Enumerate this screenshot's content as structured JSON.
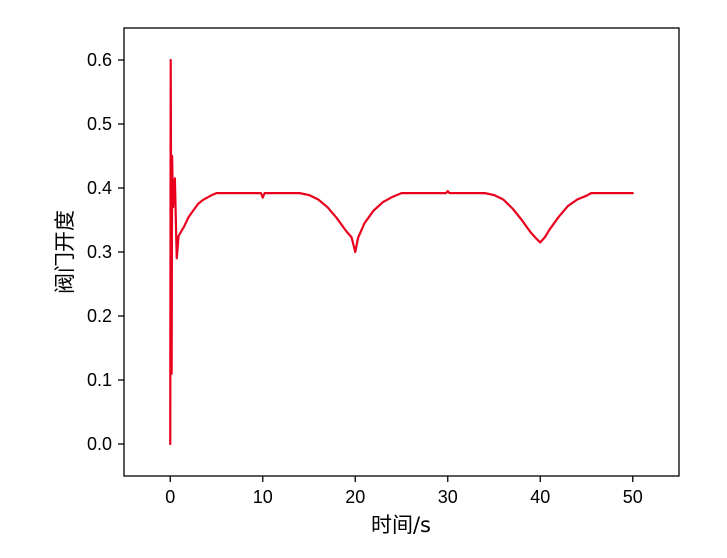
{
  "chart_data": {
    "type": "line",
    "xlabel": "时间/s",
    "ylabel": "阀门开度",
    "xlim": [
      -5,
      55
    ],
    "ylim": [
      -0.05,
      0.65
    ],
    "x_ticks": [
      0,
      10,
      20,
      30,
      40,
      50
    ],
    "y_ticks": [
      0.0,
      0.1,
      0.2,
      0.3,
      0.4,
      0.5,
      0.6
    ],
    "x_tick_labels": [
      "0",
      "10",
      "20",
      "30",
      "40",
      "50"
    ],
    "y_tick_labels": [
      "0.0",
      "0.1",
      "0.2",
      "0.3",
      "0.4",
      "0.5",
      "0.6"
    ],
    "grid": false,
    "legend": "none",
    "series": [
      {
        "color": "#e8001c",
        "points": [
          [
            0.0,
            0.0
          ],
          [
            0.05,
            0.6
          ],
          [
            0.1,
            0.35
          ],
          [
            0.15,
            0.11
          ],
          [
            0.2,
            0.45
          ],
          [
            0.3,
            0.37
          ],
          [
            0.5,
            0.415
          ],
          [
            0.7,
            0.29
          ],
          [
            0.9,
            0.325
          ],
          [
            1.5,
            0.34
          ],
          [
            2.0,
            0.355
          ],
          [
            2.5,
            0.365
          ],
          [
            3.0,
            0.375
          ],
          [
            3.5,
            0.381
          ],
          [
            4.0,
            0.385
          ],
          [
            4.5,
            0.389
          ],
          [
            5.0,
            0.392
          ],
          [
            9.8,
            0.392
          ],
          [
            10.0,
            0.385
          ],
          [
            10.2,
            0.392
          ],
          [
            14.0,
            0.392
          ],
          [
            15.0,
            0.389
          ],
          [
            16.0,
            0.382
          ],
          [
            17.0,
            0.37
          ],
          [
            18.0,
            0.353
          ],
          [
            19.0,
            0.333
          ],
          [
            19.6,
            0.323
          ],
          [
            20.0,
            0.3
          ],
          [
            20.3,
            0.322
          ],
          [
            21.0,
            0.345
          ],
          [
            22.0,
            0.365
          ],
          [
            23.0,
            0.378
          ],
          [
            24.0,
            0.386
          ],
          [
            25.0,
            0.392
          ],
          [
            29.8,
            0.392
          ],
          [
            30.0,
            0.395
          ],
          [
            30.2,
            0.392
          ],
          [
            34.0,
            0.392
          ],
          [
            35.0,
            0.389
          ],
          [
            36.0,
            0.382
          ],
          [
            37.0,
            0.368
          ],
          [
            38.0,
            0.35
          ],
          [
            39.0,
            0.33
          ],
          [
            39.5,
            0.322
          ],
          [
            40.0,
            0.315
          ],
          [
            40.5,
            0.323
          ],
          [
            41.0,
            0.335
          ],
          [
            42.0,
            0.355
          ],
          [
            43.0,
            0.372
          ],
          [
            44.0,
            0.382
          ],
          [
            45.0,
            0.388
          ],
          [
            45.5,
            0.392
          ],
          [
            50.0,
            0.392
          ]
        ]
      }
    ]
  }
}
